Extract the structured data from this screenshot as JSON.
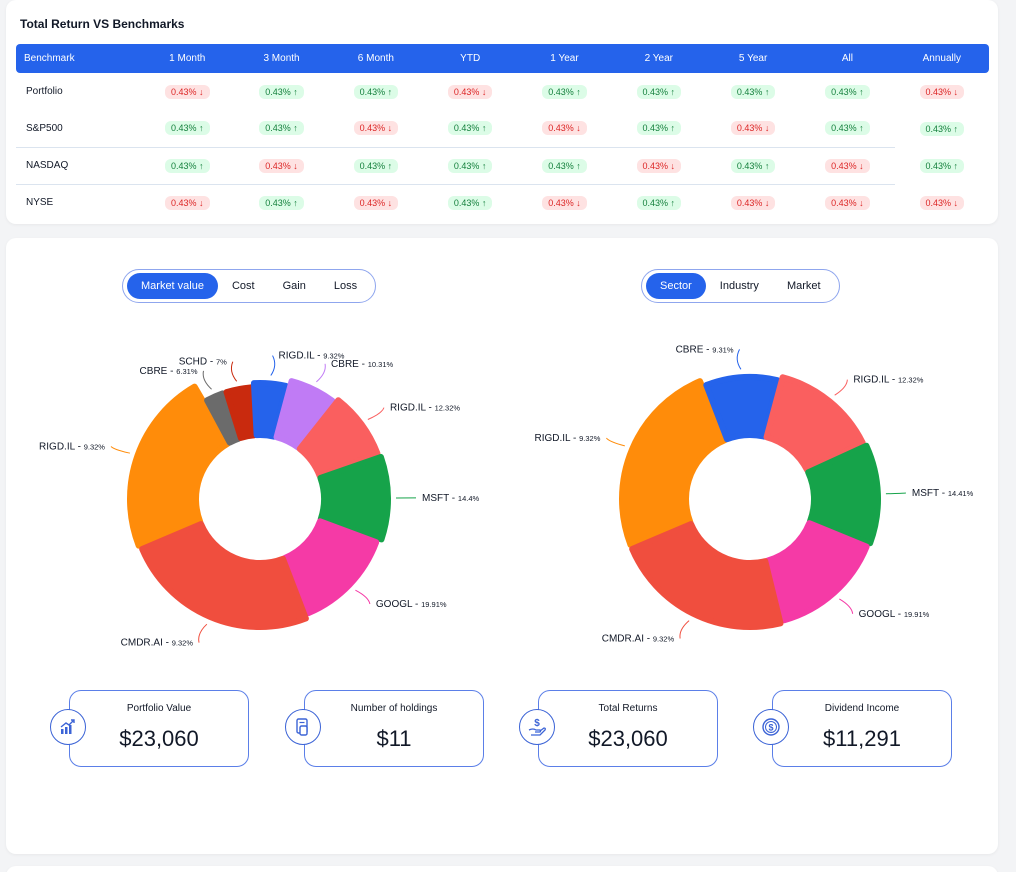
{
  "benchmarks": {
    "title": "Total Return VS Benchmarks",
    "columns": [
      "Benchmark",
      "1 Month",
      "3 Month",
      "6 Month",
      "YTD",
      "1 Year",
      "2 Year",
      "5 Year",
      "All",
      "Annually"
    ],
    "rows": [
      {
        "name": "Portfolio",
        "cells": [
          {
            "value": "0.43%",
            "trend": "down"
          },
          {
            "value": "0.43%",
            "trend": "up"
          },
          {
            "value": "0.43%",
            "trend": "up"
          },
          {
            "value": "0.43%",
            "trend": "down"
          },
          {
            "value": "0.43%",
            "trend": "up"
          },
          {
            "value": "0.43%",
            "trend": "up"
          },
          {
            "value": "0.43%",
            "trend": "up"
          },
          {
            "value": "0.43%",
            "trend": "up"
          },
          {
            "value": "0.43%",
            "trend": "down"
          }
        ]
      },
      {
        "name": "S&P500",
        "cells": [
          {
            "value": "0.43%",
            "trend": "up"
          },
          {
            "value": "0.43%",
            "trend": "up"
          },
          {
            "value": "0.43%",
            "trend": "down"
          },
          {
            "value": "0.43%",
            "trend": "up"
          },
          {
            "value": "0.43%",
            "trend": "down"
          },
          {
            "value": "0.43%",
            "trend": "up"
          },
          {
            "value": "0.43%",
            "trend": "down"
          },
          {
            "value": "0.43%",
            "trend": "up"
          },
          {
            "value": "0.43%",
            "trend": "up"
          }
        ]
      },
      {
        "name": "NASDAQ",
        "cells": [
          {
            "value": "0.43%",
            "trend": "up"
          },
          {
            "value": "0.43%",
            "trend": "down"
          },
          {
            "value": "0.43%",
            "trend": "up"
          },
          {
            "value": "0.43%",
            "trend": "up"
          },
          {
            "value": "0.43%",
            "trend": "up"
          },
          {
            "value": "0.43%",
            "trend": "down"
          },
          {
            "value": "0.43%",
            "trend": "up"
          },
          {
            "value": "0.43%",
            "trend": "down"
          },
          {
            "value": "0.43%",
            "trend": "up"
          }
        ]
      },
      {
        "name": "NYSE",
        "cells": [
          {
            "value": "0.43%",
            "trend": "down"
          },
          {
            "value": "0.43%",
            "trend": "up"
          },
          {
            "value": "0.43%",
            "trend": "down"
          },
          {
            "value": "0.43%",
            "trend": "up"
          },
          {
            "value": "0.43%",
            "trend": "down"
          },
          {
            "value": "0.43%",
            "trend": "up"
          },
          {
            "value": "0.43%",
            "trend": "down"
          },
          {
            "value": "0.43%",
            "trend": "down"
          },
          {
            "value": "0.43%",
            "trend": "down"
          }
        ]
      }
    ]
  },
  "left_tabs": {
    "items": [
      "Market value",
      "Cost",
      "Gain",
      "Loss"
    ],
    "active": 0
  },
  "right_tabs": {
    "items": [
      "Sector",
      "Industry",
      "Market"
    ],
    "active": 0
  },
  "colors": {
    "accent": "#2563eb",
    "up_bg": "#dcfce7",
    "up_text": "#15803d",
    "down_bg": "#fee2e2",
    "down_text": "#dc2626",
    "orange": "#ff8c0a",
    "red": "#f04e3e",
    "pink": "#f53aa6",
    "green": "#16a34a",
    "salmon": "#fa5f5f",
    "purple": "#c07bf5",
    "blue": "#2563eb",
    "darkred": "#c92a0e",
    "gray": "#6b6b6b"
  },
  "chart_data": [
    {
      "type": "pie",
      "donut": true,
      "slices": [
        {
          "label": "RIGD.IL",
          "pct_text": "9.32%",
          "value": 23,
          "color": "#ff8c0a"
        },
        {
          "label": "CBRE",
          "pct_text": "6.31%",
          "value": 3,
          "color": "#6b6b6b"
        },
        {
          "label": "SCHD",
          "pct_text": "7%",
          "value": 4,
          "color": "#c92a0e"
        },
        {
          "label": "RIGD.IL",
          "pct_text": "9.32%",
          "value": 5,
          "color": "#2563eb"
        },
        {
          "label": "CBRE",
          "pct_text": "10.31%",
          "value": 6.5,
          "color": "#c07bf5"
        },
        {
          "label": "RIGD.IL",
          "pct_text": "12.32%",
          "value": 9,
          "color": "#fa5f5f"
        },
        {
          "label": "MSFT",
          "pct_text": "14.4%",
          "value": 11,
          "color": "#16a34a"
        },
        {
          "label": "GOOGL",
          "pct_text": "19.91%",
          "value": 13.5,
          "color": "#f53aa6"
        },
        {
          "label": "CMDR.AI",
          "pct_text": "9.32%",
          "value": 25,
          "color": "#f04e3e"
        }
      ]
    },
    {
      "type": "pie",
      "donut": true,
      "slices": [
        {
          "label": "RIGD.IL",
          "pct_text": "9.32%",
          "value": 25,
          "color": "#ff8c0a"
        },
        {
          "label": "CBRE",
          "pct_text": "9.31%",
          "value": 10,
          "color": "#2563eb"
        },
        {
          "label": "RIGD.IL",
          "pct_text": "12.32%",
          "value": 14,
          "color": "#fa5f5f"
        },
        {
          "label": "MSFT",
          "pct_text": "14.41%",
          "value": 13,
          "color": "#16a34a"
        },
        {
          "label": "GOOGL",
          "pct_text": "19.91%",
          "value": 15,
          "color": "#f53aa6"
        },
        {
          "label": "CMDR.AI",
          "pct_text": "9.32%",
          "value": 23,
          "color": "#f04e3e"
        }
      ]
    }
  ],
  "stats": [
    {
      "label": "Portfolio Value",
      "value": "$23,060",
      "icon": "chart-growth-icon"
    },
    {
      "label": "Number of holdings",
      "value": "$11",
      "icon": "document-dollar-icon"
    },
    {
      "label": "Total Returns",
      "value": "$23,060",
      "icon": "hand-dollar-icon"
    },
    {
      "label": "Dividend Income",
      "value": "$11,291",
      "icon": "dollar-coin-icon"
    }
  ]
}
